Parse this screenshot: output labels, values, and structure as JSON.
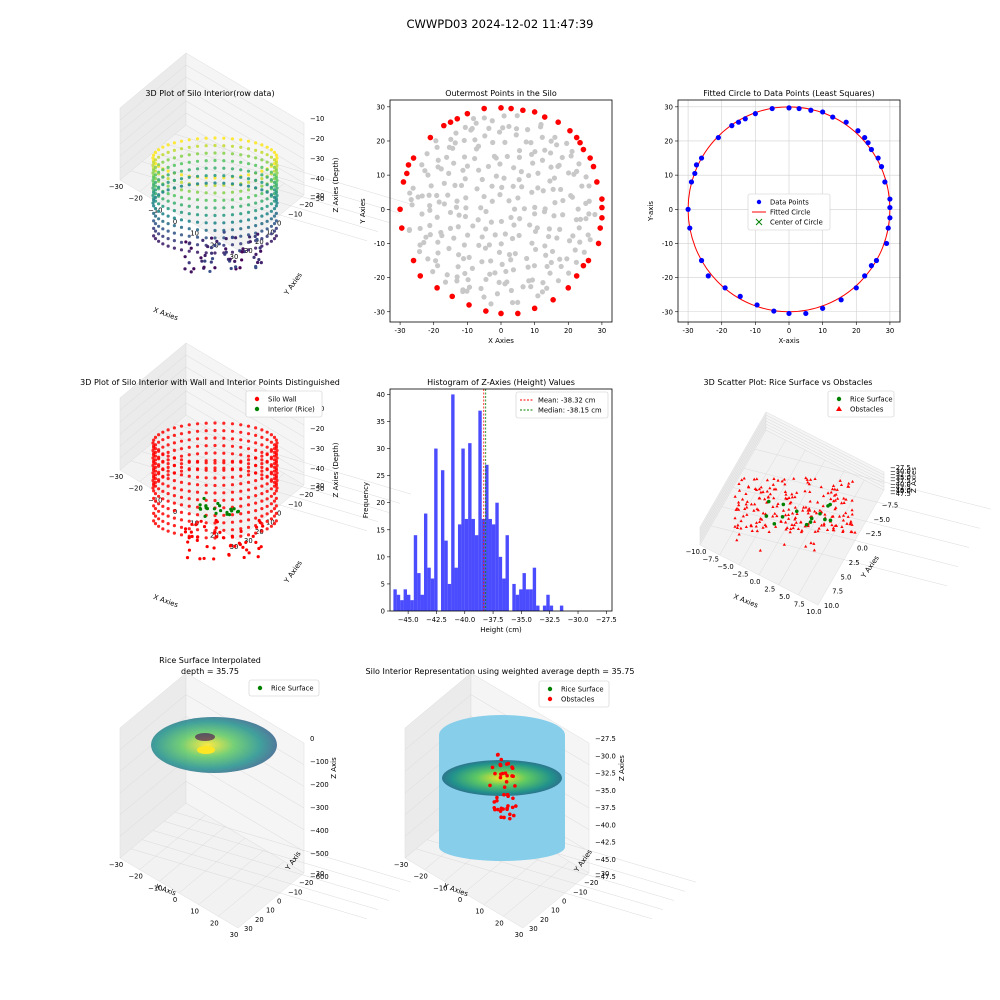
{
  "figure": {
    "suptitle": "CWWPD03 2024-12-02 11:47:39"
  },
  "chart_data": [
    {
      "type": "scatter",
      "projection": "3d",
      "title": "3D Plot of Silo Interior(row data)",
      "xlabel": "X Axies",
      "ylabel": "Y Axies",
      "zlabel": "Z Axies (Depth)",
      "xticks": [
        "−30",
        "−20",
        "−10",
        "0",
        "10",
        "20",
        "30"
      ],
      "yticks": [
        "−30",
        "−20",
        "−10",
        "0",
        "10",
        "20",
        "30"
      ],
      "zticks": [
        "−10",
        "−20",
        "−30",
        "−40",
        "−50"
      ],
      "zlim": [
        -55,
        -5
      ],
      "colormap": "viridis"
    },
    {
      "type": "scatter",
      "title": "Outermost Points in the Silo",
      "xlabel": "X Axies",
      "ylabel": "Y Axies",
      "xlim": [
        -33,
        33
      ],
      "ylim": [
        -33,
        32
      ],
      "xticks": [
        -30,
        -20,
        -10,
        0,
        10,
        20,
        30
      ],
      "yticks": [
        -30,
        -20,
        -10,
        0,
        10,
        20,
        30
      ],
      "series": [
        {
          "role": "interior",
          "color": "#c8c8c8"
        },
        {
          "role": "outermost",
          "color": "#ff0000"
        }
      ],
      "outermost_points": [
        [
          -30,
          0
        ],
        [
          -29.5,
          -5.5
        ],
        [
          -29,
          8
        ],
        [
          -28,
          10.5
        ],
        [
          -27.5,
          13
        ],
        [
          -26,
          15
        ],
        [
          -26,
          -15
        ],
        [
          -24,
          -19.5
        ],
        [
          -21,
          21
        ],
        [
          -19,
          -23
        ],
        [
          -17,
          24.5
        ],
        [
          -15,
          25.5
        ],
        [
          -14.5,
          -25.5
        ],
        [
          -13,
          26.5
        ],
        [
          -10,
          28
        ],
        [
          -9.5,
          -28
        ],
        [
          -5,
          29.5
        ],
        [
          -4.5,
          -29.8
        ],
        [
          0,
          29.7
        ],
        [
          0,
          -30.5
        ],
        [
          3,
          29.5
        ],
        [
          5,
          -30.5
        ],
        [
          6.5,
          29
        ],
        [
          10,
          28.5
        ],
        [
          10,
          -29
        ],
        [
          13,
          27
        ],
        [
          15.5,
          -26.5
        ],
        [
          17,
          25.5
        ],
        [
          20,
          -23
        ],
        [
          20.5,
          23
        ],
        [
          22.5,
          -19.5
        ],
        [
          22.5,
          21
        ],
        [
          23.5,
          19.5
        ],
        [
          24.5,
          17.5
        ],
        [
          24.5,
          -16.5
        ],
        [
          26,
          -15
        ],
        [
          26.5,
          15
        ],
        [
          27.5,
          12.5
        ],
        [
          28.5,
          8
        ],
        [
          29,
          -10
        ],
        [
          29.5,
          -5.5
        ],
        [
          30,
          -2.5
        ],
        [
          30,
          0.5
        ],
        [
          30,
          3
        ]
      ]
    },
    {
      "type": "scatter",
      "title": "Fitted Circle to Data Points (Least Squares)",
      "xlabel": "X-axis",
      "ylabel": "Y-axis",
      "xlim": [
        -33,
        33
      ],
      "ylim": [
        -33,
        32
      ],
      "xticks": [
        -30,
        -20,
        -10,
        0,
        10,
        20,
        30
      ],
      "yticks": [
        -30,
        -20,
        -10,
        0,
        10,
        20,
        30
      ],
      "grid": true,
      "legend_position": "center",
      "series": [
        {
          "name": "Data Points",
          "color": "#0000ff"
        },
        {
          "name": "Fitted Circle",
          "color": "#ff0000"
        },
        {
          "name": "Center of Circle",
          "color": "#008000"
        }
      ],
      "circle": {
        "cx": 0,
        "cy": 0,
        "r": 30
      }
    },
    {
      "type": "scatter",
      "projection": "3d",
      "title": "3D Plot of Silo Interior with Wall and Interior Points Distinguished",
      "xlabel": "X Axies",
      "ylabel": "Y Axies",
      "zlabel": "Z Axies (Depth)",
      "xticks": [
        "−30",
        "−20",
        "−10",
        "0",
        "10",
        "20",
        "30"
      ],
      "yticks": [
        "−30",
        "−20",
        "−10",
        "0",
        "10",
        "20",
        "30"
      ],
      "zticks": [
        "−10",
        "−20",
        "−30",
        "−40",
        "−50"
      ],
      "legend_position": "upper right",
      "series": [
        {
          "name": "Silo Wall",
          "color": "#ff0000"
        },
        {
          "name": "Interior (Rice)",
          "color": "#008000"
        }
      ]
    },
    {
      "type": "bar",
      "title": "Histogram of Z-Axies (Height) Values",
      "xlabel": "Height (cm)",
      "ylabel": "Frequency",
      "xlim": [
        -46.6,
        -27
      ],
      "ylim": [
        0,
        41
      ],
      "xticks": [
        -45.0,
        -42.5,
        -40.0,
        -37.5,
        -35.0,
        -32.5,
        -30.0,
        -27.5
      ],
      "xtick_labels": [
        "−45.0",
        "−42.5",
        "−40.0",
        "−37.5",
        "−35.0",
        "−32.5",
        "−30.0",
        "−27.5"
      ],
      "yticks": [
        0,
        5,
        10,
        15,
        20,
        25,
        30,
        35,
        40
      ],
      "bin_start": -46.3,
      "bin_width": 0.3,
      "values": [
        4,
        3,
        2,
        4,
        3,
        2,
        14,
        7,
        3,
        18,
        8,
        6,
        30,
        0,
        26,
        13,
        5,
        40,
        8,
        16,
        30,
        17,
        31,
        17,
        14,
        37,
        17,
        27,
        17,
        16,
        20,
        10,
        6,
        14,
        0,
        5,
        3,
        4,
        7,
        4,
        4,
        8,
        1,
        0,
        1,
        3,
        1,
        0,
        0,
        1
      ],
      "color": "#0000ff",
      "legend_position": "upper right",
      "lines": [
        {
          "name": "Mean: -38.32 cm",
          "x": -38.32,
          "color": "#ff0000"
        },
        {
          "name": "Median: -38.15 cm",
          "x": -38.15,
          "color": "#008000"
        }
      ]
    },
    {
      "type": "scatter",
      "projection": "3d",
      "title": "3D Scatter Plot: Rice Surface vs Obstacles",
      "xlabel": "X Axies",
      "ylabel": "Y Axies",
      "zlabel": "Z Axies",
      "xticks": [
        "−10.0",
        "−7.5",
        "−5.0",
        "−2.5",
        "0.0",
        "2.5",
        "5.0",
        "7.5",
        "10.0"
      ],
      "yticks": [
        "−10.0",
        "−7.5",
        "−5.0",
        "−2.5",
        "0.0",
        "2.5",
        "5.0",
        "7.5",
        "10.0"
      ],
      "zticks": [
        "−27.5",
        "−30.0",
        "−32.5",
        "−35.0",
        "−37.5",
        "−40.0",
        "−42.5",
        "−45.0",
        "−47.5"
      ],
      "legend_position": "upper right",
      "series": [
        {
          "name": "Rice Surface",
          "color": "#008000",
          "marker": "circle"
        },
        {
          "name": "Obstacles",
          "color": "#ff0000",
          "marker": "triangle"
        }
      ]
    },
    {
      "type": "surface",
      "projection": "3d",
      "title": "Rice Surface Interpolated",
      "subtitle": "depth = 35.75",
      "xlabel": "X Axis",
      "ylabel": "Y Axis",
      "zlabel": "Z Axis",
      "xticks": [
        "−30",
        "−20",
        "−10",
        "0",
        "10",
        "20",
        "30"
      ],
      "yticks": [
        "−30",
        "−20",
        "−10",
        "0",
        "10",
        "20",
        "30"
      ],
      "zticks": [
        "0",
        "−100",
        "−200",
        "−300",
        "−400",
        "−500",
        "−600"
      ],
      "legend_position": "upper right",
      "series": [
        {
          "name": "Rice Surface",
          "color": "#008000"
        }
      ]
    },
    {
      "type": "surface",
      "projection": "3d",
      "title": "Silo Interior Representation using weighted average depth = 35.75",
      "xlabel": "X Axies",
      "ylabel": "Y Axies",
      "zlabel": "Z Axies",
      "xticks": [
        "−30",
        "−20",
        "−10",
        "0",
        "10",
        "20",
        "30"
      ],
      "yticks": [
        "−30",
        "−20",
        "−10",
        "0",
        "10",
        "20",
        "30"
      ],
      "zticks": [
        "−27.5",
        "−30.0",
        "−32.5",
        "−35.0",
        "−37.5",
        "−40.0",
        "−42.5",
        "−45.0",
        "−47.5"
      ],
      "legend_position": "upper right",
      "series": [
        {
          "name": "Rice Surface",
          "color": "#008000"
        },
        {
          "name": "Obstacles",
          "color": "#ff0000"
        }
      ]
    }
  ]
}
